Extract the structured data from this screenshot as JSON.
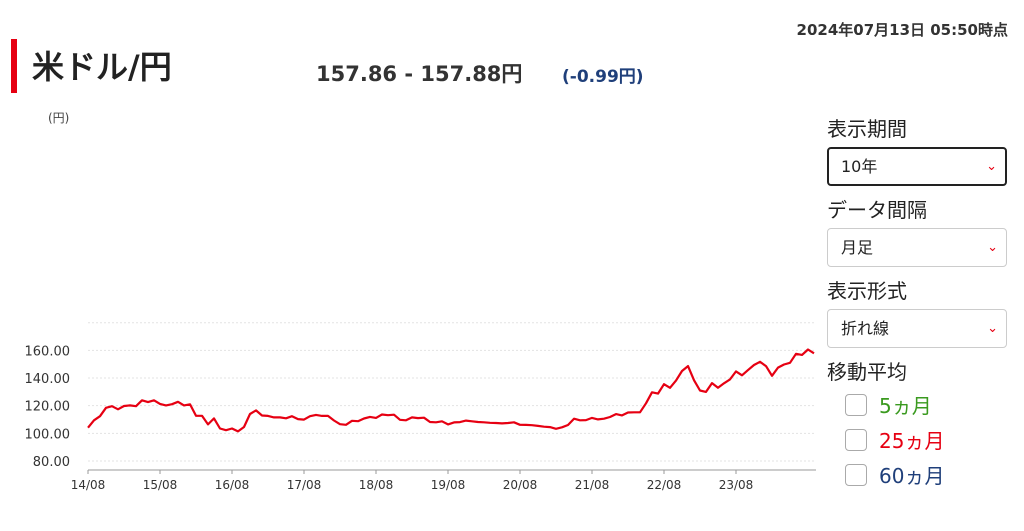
{
  "header": {
    "timestamp": "2024年07月13日 05:50時点",
    "title": "米ドル/円",
    "price": "157.86 - 157.88円",
    "change": "(-0.99円)"
  },
  "controls": {
    "period_label": "表示期間",
    "period_value": "10年",
    "interval_label": "データ間隔",
    "interval_value": "月足",
    "format_label": "表示形式",
    "format_value": "折れ線",
    "ma_label": "移動平均",
    "ma_items": [
      {
        "label": "5ヵ月",
        "color": "#3a9a1f"
      },
      {
        "label": "25ヵ月",
        "color": "#e60012"
      },
      {
        "label": "60ヵ月",
        "color": "#1f3f7a"
      }
    ]
  },
  "colors": {
    "accent": "#e60012",
    "change": "#1f3f7a"
  },
  "chart_data": {
    "type": "line",
    "ylabel": "(円)",
    "ylim": [
      80,
      180
    ],
    "yticks": [
      "80.00",
      "100.00",
      "120.00",
      "140.00",
      "160.00"
    ],
    "ytick_values": [
      80,
      100,
      120,
      140,
      160
    ],
    "xticks": [
      "14/08",
      "15/08",
      "16/08",
      "17/08",
      "18/08",
      "19/08",
      "20/08",
      "21/08",
      "22/08",
      "23/08"
    ],
    "grid": true,
    "series": [
      {
        "color": "#e60012",
        "values": [
          104.1,
          109.4,
          112.4,
          118.5,
          119.6,
          117.4,
          119.8,
          120.2,
          119.6,
          123.9,
          122.6,
          123.9,
          121.3,
          120.2,
          121.1,
          122.8,
          120.2,
          121.0,
          112.7,
          112.7,
          106.5,
          110.8,
          103.5,
          102.3,
          103.5,
          101.4,
          104.6,
          114.0,
          116.6,
          112.9,
          112.6,
          111.5,
          111.5,
          110.9,
          112.4,
          110.3,
          109.9,
          112.4,
          113.3,
          112.6,
          112.6,
          109.3,
          106.6,
          106.2,
          109.1,
          108.8,
          110.7,
          111.9,
          111.2,
          113.6,
          113.1,
          113.5,
          109.8,
          109.4,
          111.5,
          111.0,
          111.3,
          108.2,
          108.0,
          108.7,
          106.5,
          107.9,
          108.1,
          109.2,
          108.7,
          108.2,
          108.0,
          107.6,
          107.5,
          107.2,
          107.5,
          108.0,
          106.2,
          106.1,
          105.9,
          105.4,
          104.8,
          104.5,
          103.3,
          104.4,
          106.0,
          110.6,
          109.4,
          109.6,
          111.2,
          110.1,
          110.6,
          111.8,
          113.9,
          113.0,
          115.1,
          115.2,
          115.2,
          121.7,
          129.7,
          128.7,
          135.5,
          132.9,
          138.1,
          145.1,
          148.6,
          138.4,
          131.0,
          130.0,
          136.3,
          132.9,
          136.2,
          139.0,
          144.8,
          142.0,
          145.7,
          149.4,
          151.7,
          148.6,
          141.6,
          147.5,
          149.8,
          151.0,
          157.5,
          156.7,
          160.6,
          157.9
        ]
      }
    ]
  }
}
